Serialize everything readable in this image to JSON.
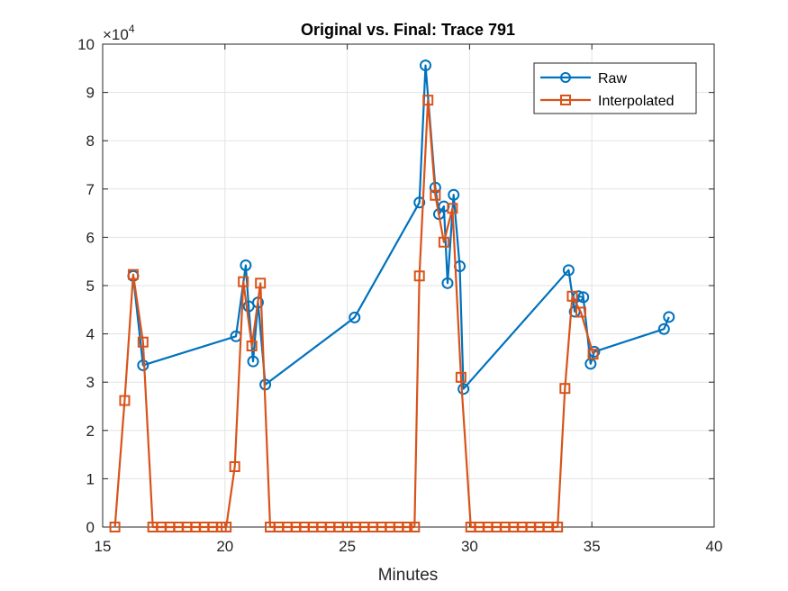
{
  "chart_data": {
    "type": "line",
    "title": "Original vs. Final: Trace 791",
    "xlabel": "Minutes",
    "ylabel": "",
    "xlim": [
      15,
      40
    ],
    "ylim": [
      0,
      100000
    ],
    "x_ticks": [
      "15",
      "20",
      "25",
      "30",
      "35",
      "40"
    ],
    "y_ticks": [
      "0",
      "1",
      "2",
      "3",
      "4",
      "5",
      "6",
      "7",
      "8",
      "9",
      "10"
    ],
    "y_exponent_base": "×10",
    "y_exponent_power": "4",
    "grid": true,
    "legend_position": "top-right",
    "series": [
      {
        "name": "Raw",
        "color": "#0072BD",
        "marker": "circle",
        "x": [
          16.25,
          16.65,
          20.45,
          20.85,
          20.97,
          21.15,
          21.35,
          21.65,
          25.3,
          27.95,
          28.2,
          28.6,
          28.75,
          28.95,
          29.1,
          29.35,
          29.6,
          29.75,
          34.05,
          34.3,
          34.45,
          34.65,
          34.95,
          35.1,
          37.95,
          38.15
        ],
        "y": [
          52000,
          33500,
          39500,
          54200,
          45700,
          34300,
          46500,
          29500,
          43400,
          67200,
          95600,
          70300,
          64800,
          66400,
          50500,
          68800,
          54000,
          28600,
          53200,
          44600,
          47800,
          47600,
          33800,
          36300,
          41000,
          43500
        ]
      },
      {
        "name": "Interpolated",
        "color": "#D95319",
        "marker": "square",
        "x": [
          15.5,
          15.9,
          16.25,
          16.65,
          17.05,
          17.4,
          17.75,
          18.1,
          18.45,
          18.8,
          19.15,
          19.5,
          19.85,
          20.05,
          20.4,
          20.75,
          21.1,
          21.45,
          21.85,
          22.2,
          22.55,
          22.9,
          23.25,
          23.6,
          23.95,
          24.3,
          24.65,
          25.0,
          25.35,
          25.7,
          26.05,
          26.4,
          26.75,
          27.1,
          27.45,
          27.75,
          27.95,
          28.3,
          28.6,
          28.95,
          29.3,
          29.65,
          30.05,
          30.4,
          30.75,
          31.1,
          31.45,
          31.8,
          32.15,
          32.5,
          32.85,
          33.2,
          33.6,
          33.9,
          34.2,
          34.55,
          35.05
        ],
        "y": [
          0,
          26200,
          52300,
          38300,
          0,
          0,
          0,
          0,
          0,
          0,
          0,
          0,
          0,
          0,
          12500,
          50800,
          37500,
          50500,
          0,
          0,
          0,
          0,
          0,
          0,
          0,
          0,
          0,
          0,
          0,
          0,
          0,
          0,
          0,
          0,
          0,
          0,
          52000,
          88400,
          68700,
          59000,
          66000,
          31000,
          0,
          0,
          0,
          0,
          0,
          0,
          0,
          0,
          0,
          0,
          0,
          28700,
          47800,
          44500,
          35800
        ]
      }
    ]
  }
}
